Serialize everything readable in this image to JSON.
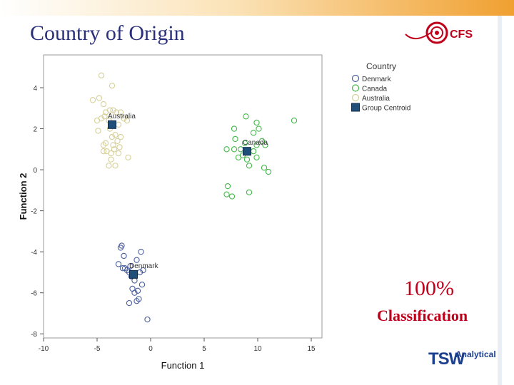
{
  "slide": {
    "title": "Country of Origin",
    "annotation_percent": "100%",
    "annotation_label": "Classification",
    "logo_top_text": "CFS",
    "logo_bottom_text": "TSW",
    "logo_bottom_subtext": "Analytical"
  },
  "colors": {
    "title": "#2a2f7a",
    "annotation": "#c0001a",
    "top_bar_orange": "#f0a030",
    "denmark": "#4a5fa0",
    "canada": "#44b84a",
    "australia": "#d6d09a",
    "centroid": "#1f4e79"
  },
  "chart_data": {
    "type": "scatter",
    "xlabel": "Function 1",
    "ylabel": "Function 2",
    "xlim": [
      -10,
      16
    ],
    "ylim": [
      -8.2,
      5.6
    ],
    "xticks": [
      -10,
      -5,
      0,
      5,
      10,
      15
    ],
    "yticks": [
      4,
      2,
      0,
      -2,
      -4,
      -6,
      -8
    ],
    "xtick_labels": [
      "-10",
      "-5",
      "0",
      "5",
      "10",
      "15"
    ],
    "ytick_labels": [
      "4",
      "2",
      "0",
      "-2",
      "-4",
      "-6",
      "-8"
    ],
    "grid": false,
    "legend_title": "Country",
    "legend_position": "outside-right",
    "series": [
      {
        "name": "Denmark",
        "color": "#4a5fa0",
        "marker": "open-circle",
        "points": [
          [
            -2.7,
            -3.7
          ],
          [
            -2.8,
            -3.8
          ],
          [
            -0.9,
            -4.0
          ],
          [
            -2.5,
            -4.2
          ],
          [
            -1.3,
            -4.4
          ],
          [
            -3.0,
            -4.6
          ],
          [
            -2.6,
            -4.8
          ],
          [
            -2.2,
            -4.9
          ],
          [
            -0.7,
            -4.9
          ],
          [
            -1.0,
            -5.0
          ],
          [
            -2.0,
            -5.0
          ],
          [
            -1.8,
            -5.2
          ],
          [
            -1.5,
            -5.4
          ],
          [
            -0.8,
            -5.6
          ],
          [
            -1.7,
            -5.8
          ],
          [
            -1.5,
            -6.0
          ],
          [
            -1.2,
            -5.9
          ],
          [
            -1.1,
            -6.3
          ],
          [
            -2.0,
            -6.5
          ],
          [
            -1.3,
            -6.4
          ],
          [
            -0.3,
            -7.3
          ],
          [
            -2.4,
            -4.8
          ],
          [
            -1.9,
            -4.7
          ],
          [
            -1.6,
            -5.1
          ]
        ]
      },
      {
        "name": "Canada",
        "color": "#44b84a",
        "marker": "open-circle",
        "points": [
          [
            8.9,
            2.6
          ],
          [
            9.9,
            2.3
          ],
          [
            7.8,
            2.0
          ],
          [
            10.1,
            2.0
          ],
          [
            9.6,
            1.8
          ],
          [
            13.4,
            2.4
          ],
          [
            7.9,
            1.5
          ],
          [
            8.8,
            1.3
          ],
          [
            9.9,
            1.2
          ],
          [
            10.4,
            1.4
          ],
          [
            10.7,
            1.2
          ],
          [
            7.1,
            1.0
          ],
          [
            7.8,
            1.0
          ],
          [
            8.4,
            1.0
          ],
          [
            9.6,
            0.9
          ],
          [
            8.2,
            0.6
          ],
          [
            9.9,
            0.6
          ],
          [
            9.2,
            0.2
          ],
          [
            10.6,
            0.1
          ],
          [
            11.0,
            -0.1
          ],
          [
            7.2,
            -0.8
          ],
          [
            7.1,
            -1.2
          ],
          [
            7.6,
            -1.3
          ],
          [
            9.2,
            -1.1
          ],
          [
            8.6,
            0.7
          ],
          [
            9.0,
            0.5
          ]
        ]
      },
      {
        "name": "Australia",
        "color": "#d6d09a",
        "marker": "open-circle",
        "points": [
          [
            -4.6,
            4.6
          ],
          [
            -3.6,
            4.1
          ],
          [
            -5.4,
            3.4
          ],
          [
            -4.8,
            3.5
          ],
          [
            -4.4,
            3.2
          ],
          [
            -3.8,
            2.9
          ],
          [
            -4.2,
            2.8
          ],
          [
            -3.5,
            2.9
          ],
          [
            -3.2,
            2.8
          ],
          [
            -2.8,
            2.8
          ],
          [
            -5.0,
            2.4
          ],
          [
            -4.6,
            2.5
          ],
          [
            -3.9,
            2.4
          ],
          [
            -2.5,
            2.5
          ],
          [
            -3.0,
            2.2
          ],
          [
            -2.2,
            2.4
          ],
          [
            -4.9,
            1.9
          ],
          [
            -3.8,
            2.0
          ],
          [
            -3.3,
            1.7
          ],
          [
            -3.6,
            1.6
          ],
          [
            -2.8,
            1.6
          ],
          [
            -3.1,
            1.4
          ],
          [
            -4.2,
            1.3
          ],
          [
            -4.4,
            1.2
          ],
          [
            -3.5,
            1.2
          ],
          [
            -2.9,
            1.1
          ],
          [
            -3.4,
            1.0
          ],
          [
            -4.1,
            0.9
          ],
          [
            -3.7,
            0.8
          ],
          [
            -4.4,
            0.9
          ],
          [
            -3.0,
            0.8
          ],
          [
            -2.1,
            0.6
          ],
          [
            -3.7,
            0.5
          ],
          [
            -3.9,
            0.2
          ],
          [
            -3.3,
            0.2
          ],
          [
            -4.3,
            2.6
          ]
        ]
      }
    ],
    "centroids": [
      {
        "name": "Australia",
        "label": "Australia",
        "x": -3.6,
        "y": 2.2
      },
      {
        "name": "Canada",
        "label": "Canada",
        "x": 9.0,
        "y": 0.9
      },
      {
        "name": "Denmark",
        "label": "Denmark",
        "x": -1.6,
        "y": -5.1
      }
    ],
    "legend_entries": [
      "Denmark",
      "Canada",
      "Australia",
      "Group Centroid"
    ]
  }
}
